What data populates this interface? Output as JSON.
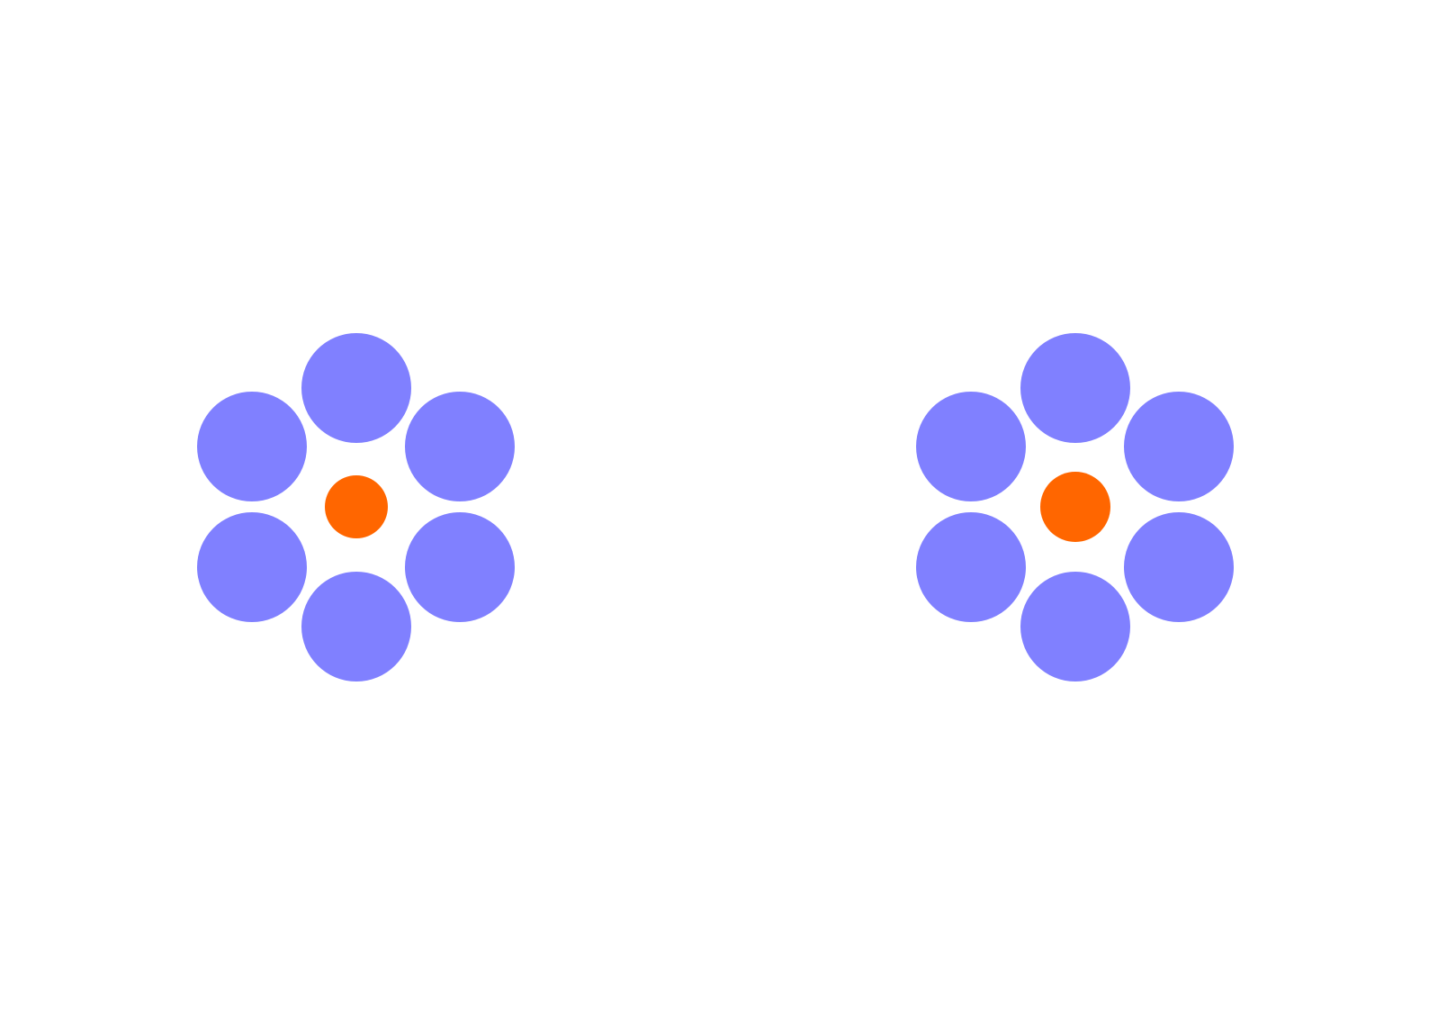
{
  "colors": {
    "background": "#FFFFFF",
    "surround": "#8080FF",
    "center": "#FF6600"
  },
  "figures": [
    {
      "name": "left-figure",
      "center_size": "small"
    },
    {
      "name": "right-figure",
      "center_size": "large"
    }
  ]
}
